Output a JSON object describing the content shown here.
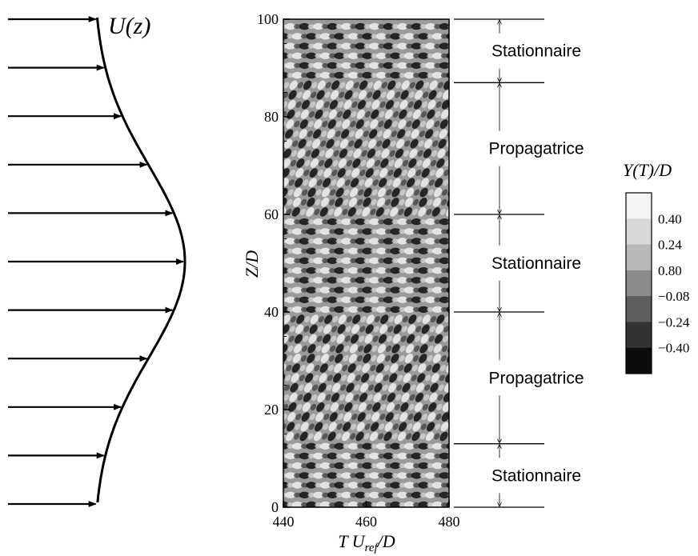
{
  "profile": {
    "label": "U(z)",
    "arrow_count": 11
  },
  "plot": {
    "ylabel": "Z/D",
    "xlabel_prefix": "T U",
    "xlabel_sub": "ref",
    "xlabel_suffix": "/D",
    "x_ticks": [
      "440",
      "460",
      "480"
    ],
    "y_ticks": [
      "0",
      "20",
      "40",
      "60",
      "80",
      "100"
    ],
    "x_range": [
      440,
      480
    ],
    "y_range": [
      0,
      100
    ]
  },
  "regions": [
    {
      "label": "Stationnaire",
      "z_from": 87,
      "z_to": 100,
      "type": "stationary"
    },
    {
      "label": "Propagatrice",
      "z_from": 60,
      "z_to": 87,
      "type": "propagating"
    },
    {
      "label": "Stationnaire",
      "z_from": 40,
      "z_to": 60,
      "type": "stationary"
    },
    {
      "label": "Propagatrice",
      "z_from": 13,
      "z_to": 40,
      "type": "propagating"
    },
    {
      "label": "Stationnaire",
      "z_from": 0,
      "z_to": 13,
      "type": "stationary"
    }
  ],
  "legend": {
    "title": "Y(T)/D",
    "labels": [
      "0.40",
      "0.24",
      "0.80",
      "−0.08",
      "−0.24",
      "−0.40"
    ],
    "colors": [
      "#f4f4f4",
      "#d8d8d8",
      "#b8b8b8",
      "#8c8c8c",
      "#5e5e5e",
      "#333333",
      "#0d0d0d"
    ]
  }
}
